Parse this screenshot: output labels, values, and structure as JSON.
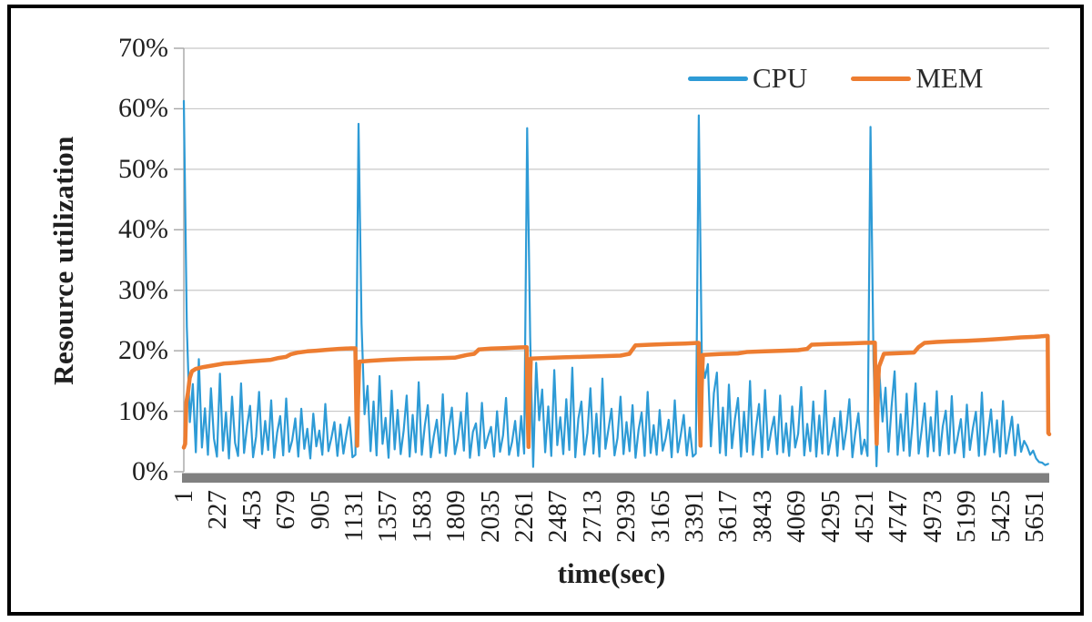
{
  "figure": {
    "kind": "line-chart-figure"
  },
  "legend": {
    "items": [
      {
        "id": "cpu",
        "label": "CPU",
        "color": "#2E9BD6"
      },
      {
        "id": "mem",
        "label": "MEM",
        "color": "#ED7D31"
      }
    ]
  },
  "y_axis": {
    "title": "Resource utilization",
    "tick_labels": [
      "70%",
      "60%",
      "50%",
      "40%",
      "30%",
      "20%",
      "10%",
      "0%"
    ]
  },
  "x_axis": {
    "title": "time(sec)",
    "tick_labels": [
      "1",
      "227",
      "453",
      "679",
      "905",
      "1131",
      "1357",
      "1583",
      "1809",
      "2035",
      "2261",
      "2487",
      "2713",
      "2939",
      "3165",
      "3391",
      "3617",
      "3843",
      "4069",
      "4295",
      "4521",
      "4747",
      "4973",
      "5199",
      "5425",
      "5651"
    ]
  },
  "colors": {
    "cpu": "#2E9BD6",
    "mem": "#ED7D31",
    "gridline": "#C8C8C8",
    "axis_line": "#A6A6A6",
    "zero_bar": "#808080",
    "frame": "#000000",
    "text": "#1f1f1f"
  },
  "chart_data": {
    "type": "line",
    "title": "",
    "xlabel": "time(sec)",
    "ylabel": "Resource utilization",
    "ylim": [
      0,
      70
    ],
    "y_unit": "%",
    "x_ticks": [
      1,
      227,
      453,
      679,
      905,
      1131,
      1357,
      1583,
      1809,
      2035,
      2261,
      2487,
      2713,
      2939,
      3165,
      3391,
      3617,
      3843,
      4069,
      4295,
      4521,
      4747,
      4973,
      5199,
      5425,
      5651
    ],
    "grid": "horizontal",
    "legend_position": "top-right-inside",
    "series": [
      {
        "name": "CPU",
        "color": "#2E9BD6",
        "sampling": {
          "t_start": 1,
          "t_step": 20
        },
        "values": [
          61.3,
          24.0,
          8.2,
          14.5,
          3.2,
          18.6,
          4.0,
          10.5,
          2.8,
          13.8,
          5.5,
          2.5,
          16.2,
          3.5,
          9.8,
          2.2,
          12.4,
          4.8,
          2.6,
          14.6,
          3.1,
          7.5,
          10.9,
          2.4,
          5.8,
          13.2,
          2.9,
          8.4,
          3.6,
          11.8,
          2.3,
          6.5,
          9.2,
          2.7,
          12.1,
          3.3,
          5.2,
          8.8,
          2.5,
          10.4,
          3.8,
          7.1,
          2.2,
          9.6,
          4.2,
          6.8,
          2.8,
          11.2,
          3.4,
          5.6,
          8.2,
          2.6,
          7.8,
          3.0,
          6.2,
          9.0,
          2.4,
          2.8,
          57.5,
          24.5,
          9.5,
          14.2,
          3.4,
          11.6,
          2.7,
          15.8,
          4.6,
          8.9,
          2.3,
          13.4,
          3.7,
          10.2,
          2.9,
          6.8,
          12.6,
          2.5,
          9.4,
          3.2,
          14.8,
          2.8,
          7.6,
          11.0,
          2.4,
          5.9,
          8.6,
          3.1,
          12.8,
          2.6,
          7.2,
          10.6,
          2.9,
          5.4,
          9.8,
          3.5,
          13.0,
          2.3,
          6.6,
          8.0,
          2.7,
          11.4,
          3.9,
          5.8,
          7.4,
          2.5,
          10.0,
          3.3,
          6.0,
          12.2,
          2.8,
          4.9,
          8.4,
          2.6,
          9.2,
          3.0,
          56.8,
          22.3,
          0.8,
          18.0,
          8.5,
          13.6,
          3.2,
          10.8,
          2.6,
          16.8,
          4.4,
          9.0,
          2.9,
          12.0,
          3.6,
          17.2,
          2.4,
          8.8,
          11.6,
          2.8,
          6.4,
          13.8,
          3.0,
          9.6,
          2.5,
          15.4,
          3.8,
          7.0,
          10.4,
          2.7,
          5.6,
          12.4,
          2.9,
          8.2,
          3.4,
          11.0,
          2.3,
          6.9,
          9.8,
          2.6,
          13.2,
          3.1,
          7.7,
          2.8,
          10.2,
          3.5,
          5.5,
          8.6,
          2.4,
          11.8,
          3.2,
          6.1,
          9.4,
          2.7,
          7.3,
          2.5,
          3.0,
          58.9,
          19.0,
          15.5,
          17.8,
          4.2,
          13.0,
          16.4,
          3.1,
          10.6,
          2.7,
          14.4,
          3.9,
          8.7,
          12.2,
          2.5,
          9.9,
          3.3,
          15.0,
          2.8,
          7.4,
          11.2,
          2.4,
          13.5,
          3.6,
          6.7,
          9.1,
          2.9,
          12.6,
          3.2,
          8.0,
          2.6,
          10.8,
          4.0,
          6.3,
          14.0,
          2.7,
          7.9,
          3.4,
          11.6,
          2.5,
          9.3,
          3.0,
          13.4,
          2.8,
          5.7,
          8.9,
          2.6,
          10.0,
          3.7,
          7.0,
          12.0,
          2.4,
          6.5,
          9.7,
          2.9,
          5.3,
          2.6,
          57.0,
          18.5,
          0.9,
          16.0,
          8.3,
          13.9,
          3.3,
          10.7,
          16.6,
          2.8,
          9.5,
          3.5,
          12.9,
          2.6,
          8.1,
          14.6,
          3.0,
          6.9,
          11.3,
          2.5,
          9.0,
          3.4,
          13.3,
          2.7,
          7.5,
          10.1,
          2.9,
          12.5,
          3.1,
          5.9,
          8.7,
          2.4,
          11.1,
          3.6,
          7.2,
          9.9,
          2.6,
          13.1,
          2.8,
          6.4,
          10.3,
          3.2,
          8.5,
          2.5,
          11.7,
          3.0,
          6.0,
          9.1,
          2.7,
          7.8,
          3.3,
          5.1,
          4.2,
          2.8,
          3.5,
          2.2,
          1.6,
          1.5,
          1.1,
          1.3
        ]
      },
      {
        "name": "MEM",
        "color": "#ED7D31",
        "points": [
          [
            1,
            4.0
          ],
          [
            10,
            4.6
          ],
          [
            18,
            11.5
          ],
          [
            28,
            13.0
          ],
          [
            40,
            15.5
          ],
          [
            55,
            16.6
          ],
          [
            80,
            17.0
          ],
          [
            130,
            17.3
          ],
          [
            200,
            17.6
          ],
          [
            270,
            17.9
          ],
          [
            340,
            18.0
          ],
          [
            420,
            18.2
          ],
          [
            500,
            18.35
          ],
          [
            580,
            18.5
          ],
          [
            630,
            18.8
          ],
          [
            680,
            19.0
          ],
          [
            710,
            19.4
          ],
          [
            760,
            19.7
          ],
          [
            820,
            19.9
          ],
          [
            880,
            20.0
          ],
          [
            950,
            20.15
          ],
          [
            1030,
            20.3
          ],
          [
            1110,
            20.4
          ],
          [
            1140,
            20.4
          ],
          [
            1147,
            10.0
          ],
          [
            1152,
            4.3
          ],
          [
            1158,
            12.0
          ],
          [
            1166,
            18.2
          ],
          [
            1240,
            18.35
          ],
          [
            1340,
            18.5
          ],
          [
            1440,
            18.6
          ],
          [
            1560,
            18.7
          ],
          [
            1680,
            18.75
          ],
          [
            1800,
            18.85
          ],
          [
            1880,
            19.3
          ],
          [
            1930,
            19.5
          ],
          [
            1960,
            20.2
          ],
          [
            2040,
            20.35
          ],
          [
            2130,
            20.45
          ],
          [
            2230,
            20.55
          ],
          [
            2278,
            20.6
          ],
          [
            2284,
            10.0
          ],
          [
            2290,
            4.1
          ],
          [
            2297,
            12.0
          ],
          [
            2305,
            18.7
          ],
          [
            2400,
            18.8
          ],
          [
            2520,
            18.9
          ],
          [
            2650,
            19.0
          ],
          [
            2780,
            19.1
          ],
          [
            2900,
            19.2
          ],
          [
            2960,
            19.5
          ],
          [
            3000,
            20.9
          ],
          [
            3100,
            21.0
          ],
          [
            3220,
            21.1
          ],
          [
            3330,
            21.2
          ],
          [
            3420,
            21.3
          ],
          [
            3426,
            10.0
          ],
          [
            3432,
            4.3
          ],
          [
            3440,
            14.0
          ],
          [
            3448,
            19.3
          ],
          [
            3560,
            19.45
          ],
          [
            3680,
            19.55
          ],
          [
            3740,
            19.8
          ],
          [
            3860,
            19.9
          ],
          [
            3980,
            20.0
          ],
          [
            4080,
            20.1
          ],
          [
            4140,
            20.3
          ],
          [
            4170,
            21.0
          ],
          [
            4280,
            21.1
          ],
          [
            4400,
            21.2
          ],
          [
            4520,
            21.3
          ],
          [
            4590,
            21.35
          ],
          [
            4596,
            10.0
          ],
          [
            4602,
            4.6
          ],
          [
            4610,
            14.0
          ],
          [
            4618,
            17.4
          ],
          [
            4650,
            19.5
          ],
          [
            4760,
            19.6
          ],
          [
            4850,
            19.7
          ],
          [
            4880,
            20.6
          ],
          [
            4920,
            21.3
          ],
          [
            5000,
            21.45
          ],
          [
            5100,
            21.55
          ],
          [
            5200,
            21.65
          ],
          [
            5320,
            21.8
          ],
          [
            5450,
            22.0
          ],
          [
            5560,
            22.2
          ],
          [
            5650,
            22.3
          ],
          [
            5730,
            22.45
          ],
          [
            5738,
            22.45
          ],
          [
            5742,
            6.4
          ],
          [
            5748,
            6.2
          ]
        ]
      }
    ]
  }
}
